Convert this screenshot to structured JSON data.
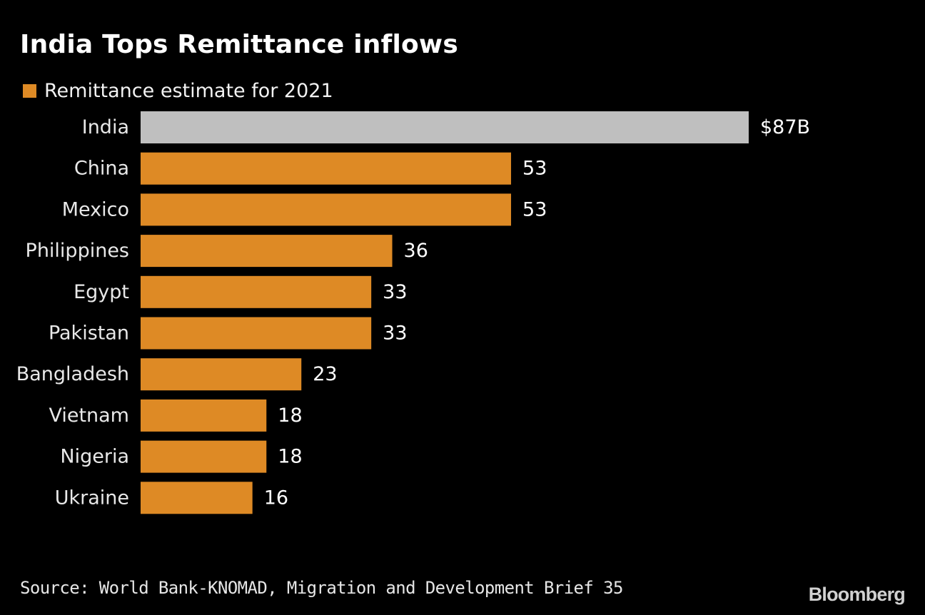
{
  "chart_data": {
    "type": "bar",
    "orientation": "horizontal",
    "title": "India Tops Remittance inflows",
    "legend": {
      "label": "Remittance estimate for 2021",
      "position": "top-left"
    },
    "categories": [
      "India",
      "China",
      "Mexico",
      "Philippines",
      "Egypt",
      "Pakistan",
      "Bangladesh",
      "Vietnam",
      "Nigeria",
      "Ukraine"
    ],
    "values": [
      87,
      53,
      53,
      36,
      33,
      33,
      23,
      18,
      18,
      16
    ],
    "value_labels": [
      "$87B",
      "53",
      "53",
      "36",
      "33",
      "33",
      "23",
      "18",
      "18",
      "16"
    ],
    "highlight_category": "India",
    "xlim": [
      0,
      87
    ],
    "xlabel": "",
    "ylabel": "",
    "grid": false,
    "source": "Source: World Bank-KNOMAD, Migration and Development Brief 35"
  },
  "colors": {
    "background": "#000000",
    "bar": "#de8a25",
    "highlight_bar": "#bfbfbf",
    "text": "#ffffff"
  },
  "brand": "Bloomberg"
}
